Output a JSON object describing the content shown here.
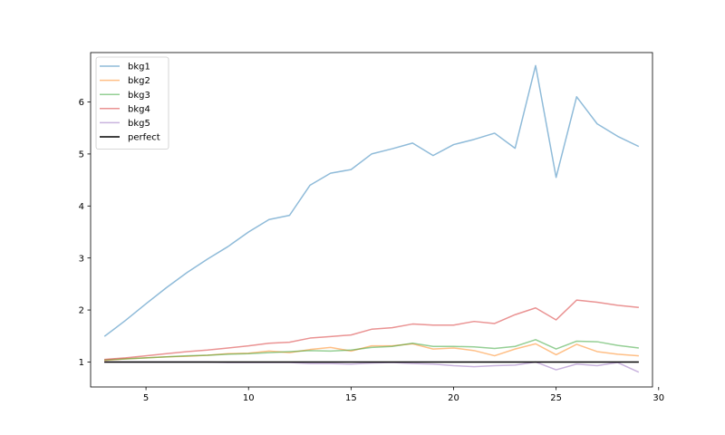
{
  "chart_data": {
    "type": "line",
    "title": "",
    "xlabel": "",
    "ylabel": "",
    "xlim": [
      2.3,
      29.7
    ],
    "ylim": [
      0.52,
      6.95
    ],
    "x_ticks": [
      5,
      10,
      15,
      20,
      25,
      30
    ],
    "y_ticks": [
      1,
      2,
      3,
      4,
      5,
      6
    ],
    "grid": false,
    "legend_position": "top-left",
    "x": [
      3,
      4,
      5,
      6,
      7,
      8,
      9,
      10,
      11,
      12,
      13,
      14,
      15,
      16,
      17,
      18,
      19,
      20,
      21,
      22,
      23,
      24,
      25,
      26,
      27,
      28,
      29
    ],
    "series": [
      {
        "name": "bkg1",
        "color": "#1f77b4",
        "alpha": 0.5,
        "values": [
          1.5,
          1.8,
          2.12,
          2.43,
          2.72,
          2.98,
          3.22,
          3.5,
          3.74,
          3.82,
          4.4,
          4.63,
          4.7,
          5.0,
          5.1,
          5.21,
          4.97,
          5.18,
          5.28,
          5.4,
          5.11,
          6.7,
          4.55,
          6.1,
          5.58,
          5.34,
          5.15
        ]
      },
      {
        "name": "bkg2",
        "color": "#ff7f0e",
        "alpha": 0.5,
        "values": [
          1.03,
          1.06,
          1.08,
          1.1,
          1.11,
          1.13,
          1.16,
          1.17,
          1.21,
          1.18,
          1.24,
          1.28,
          1.21,
          1.31,
          1.31,
          1.35,
          1.25,
          1.27,
          1.22,
          1.12,
          1.25,
          1.35,
          1.14,
          1.34,
          1.2,
          1.15,
          1.12
        ]
      },
      {
        "name": "bkg3",
        "color": "#2ca02c",
        "alpha": 0.5,
        "values": [
          1.04,
          1.06,
          1.08,
          1.1,
          1.12,
          1.13,
          1.15,
          1.16,
          1.18,
          1.2,
          1.22,
          1.21,
          1.23,
          1.28,
          1.3,
          1.36,
          1.3,
          1.3,
          1.29,
          1.26,
          1.3,
          1.43,
          1.25,
          1.4,
          1.39,
          1.32,
          1.27
        ]
      },
      {
        "name": "bkg4",
        "color": "#d62728",
        "alpha": 0.5,
        "values": [
          1.05,
          1.08,
          1.12,
          1.16,
          1.2,
          1.23,
          1.27,
          1.31,
          1.36,
          1.38,
          1.46,
          1.49,
          1.52,
          1.63,
          1.66,
          1.73,
          1.71,
          1.71,
          1.78,
          1.74,
          1.91,
          2.04,
          1.81,
          2.19,
          2.15,
          2.09,
          2.05
        ]
      },
      {
        "name": "bkg5",
        "color": "#9467bd",
        "alpha": 0.5,
        "values": [
          1.0,
          1.0,
          1.0,
          1.0,
          1.0,
          1.0,
          0.99,
          0.99,
          0.99,
          0.99,
          0.97,
          0.97,
          0.96,
          0.98,
          0.99,
          0.97,
          0.96,
          0.93,
          0.91,
          0.93,
          0.94,
          1.0,
          0.85,
          0.96,
          0.93,
          0.99,
          0.81
        ]
      },
      {
        "name": "perfect",
        "color": "#000000",
        "alpha": 1,
        "values": [
          1,
          1,
          1,
          1,
          1,
          1,
          1,
          1,
          1,
          1,
          1,
          1,
          1,
          1,
          1,
          1,
          1,
          1,
          1,
          1,
          1,
          1,
          1,
          1,
          1,
          1,
          1
        ]
      }
    ]
  }
}
